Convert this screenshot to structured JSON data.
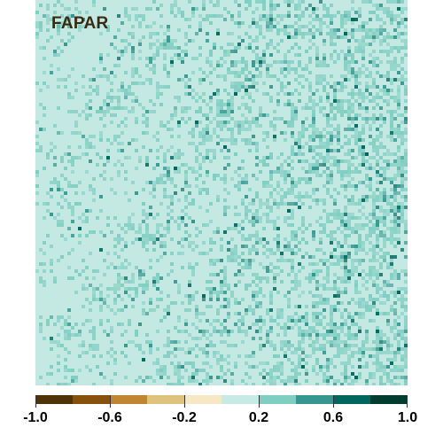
{
  "map": {
    "title": "FAPAR",
    "background_color": "#c4e9e2"
  },
  "legend": {
    "colors": [
      "#4f3208",
      "#85510d",
      "#bf8530",
      "#dfc27d",
      "#f6e8c3",
      "#c7eae5",
      "#80cdc1",
      "#35978f",
      "#01665e",
      "#003c30"
    ],
    "ticks": [
      {
        "value": -1.0,
        "label": "-1.0"
      },
      {
        "value": -0.6,
        "label": "-0.6"
      },
      {
        "value": -0.2,
        "label": "-0.2"
      },
      {
        "value": 0.2,
        "label": "0.2"
      },
      {
        "value": 0.6,
        "label": "0.6"
      },
      {
        "value": 1.0,
        "label": "1.0"
      }
    ],
    "range": [
      -1.0,
      1.0
    ]
  }
}
